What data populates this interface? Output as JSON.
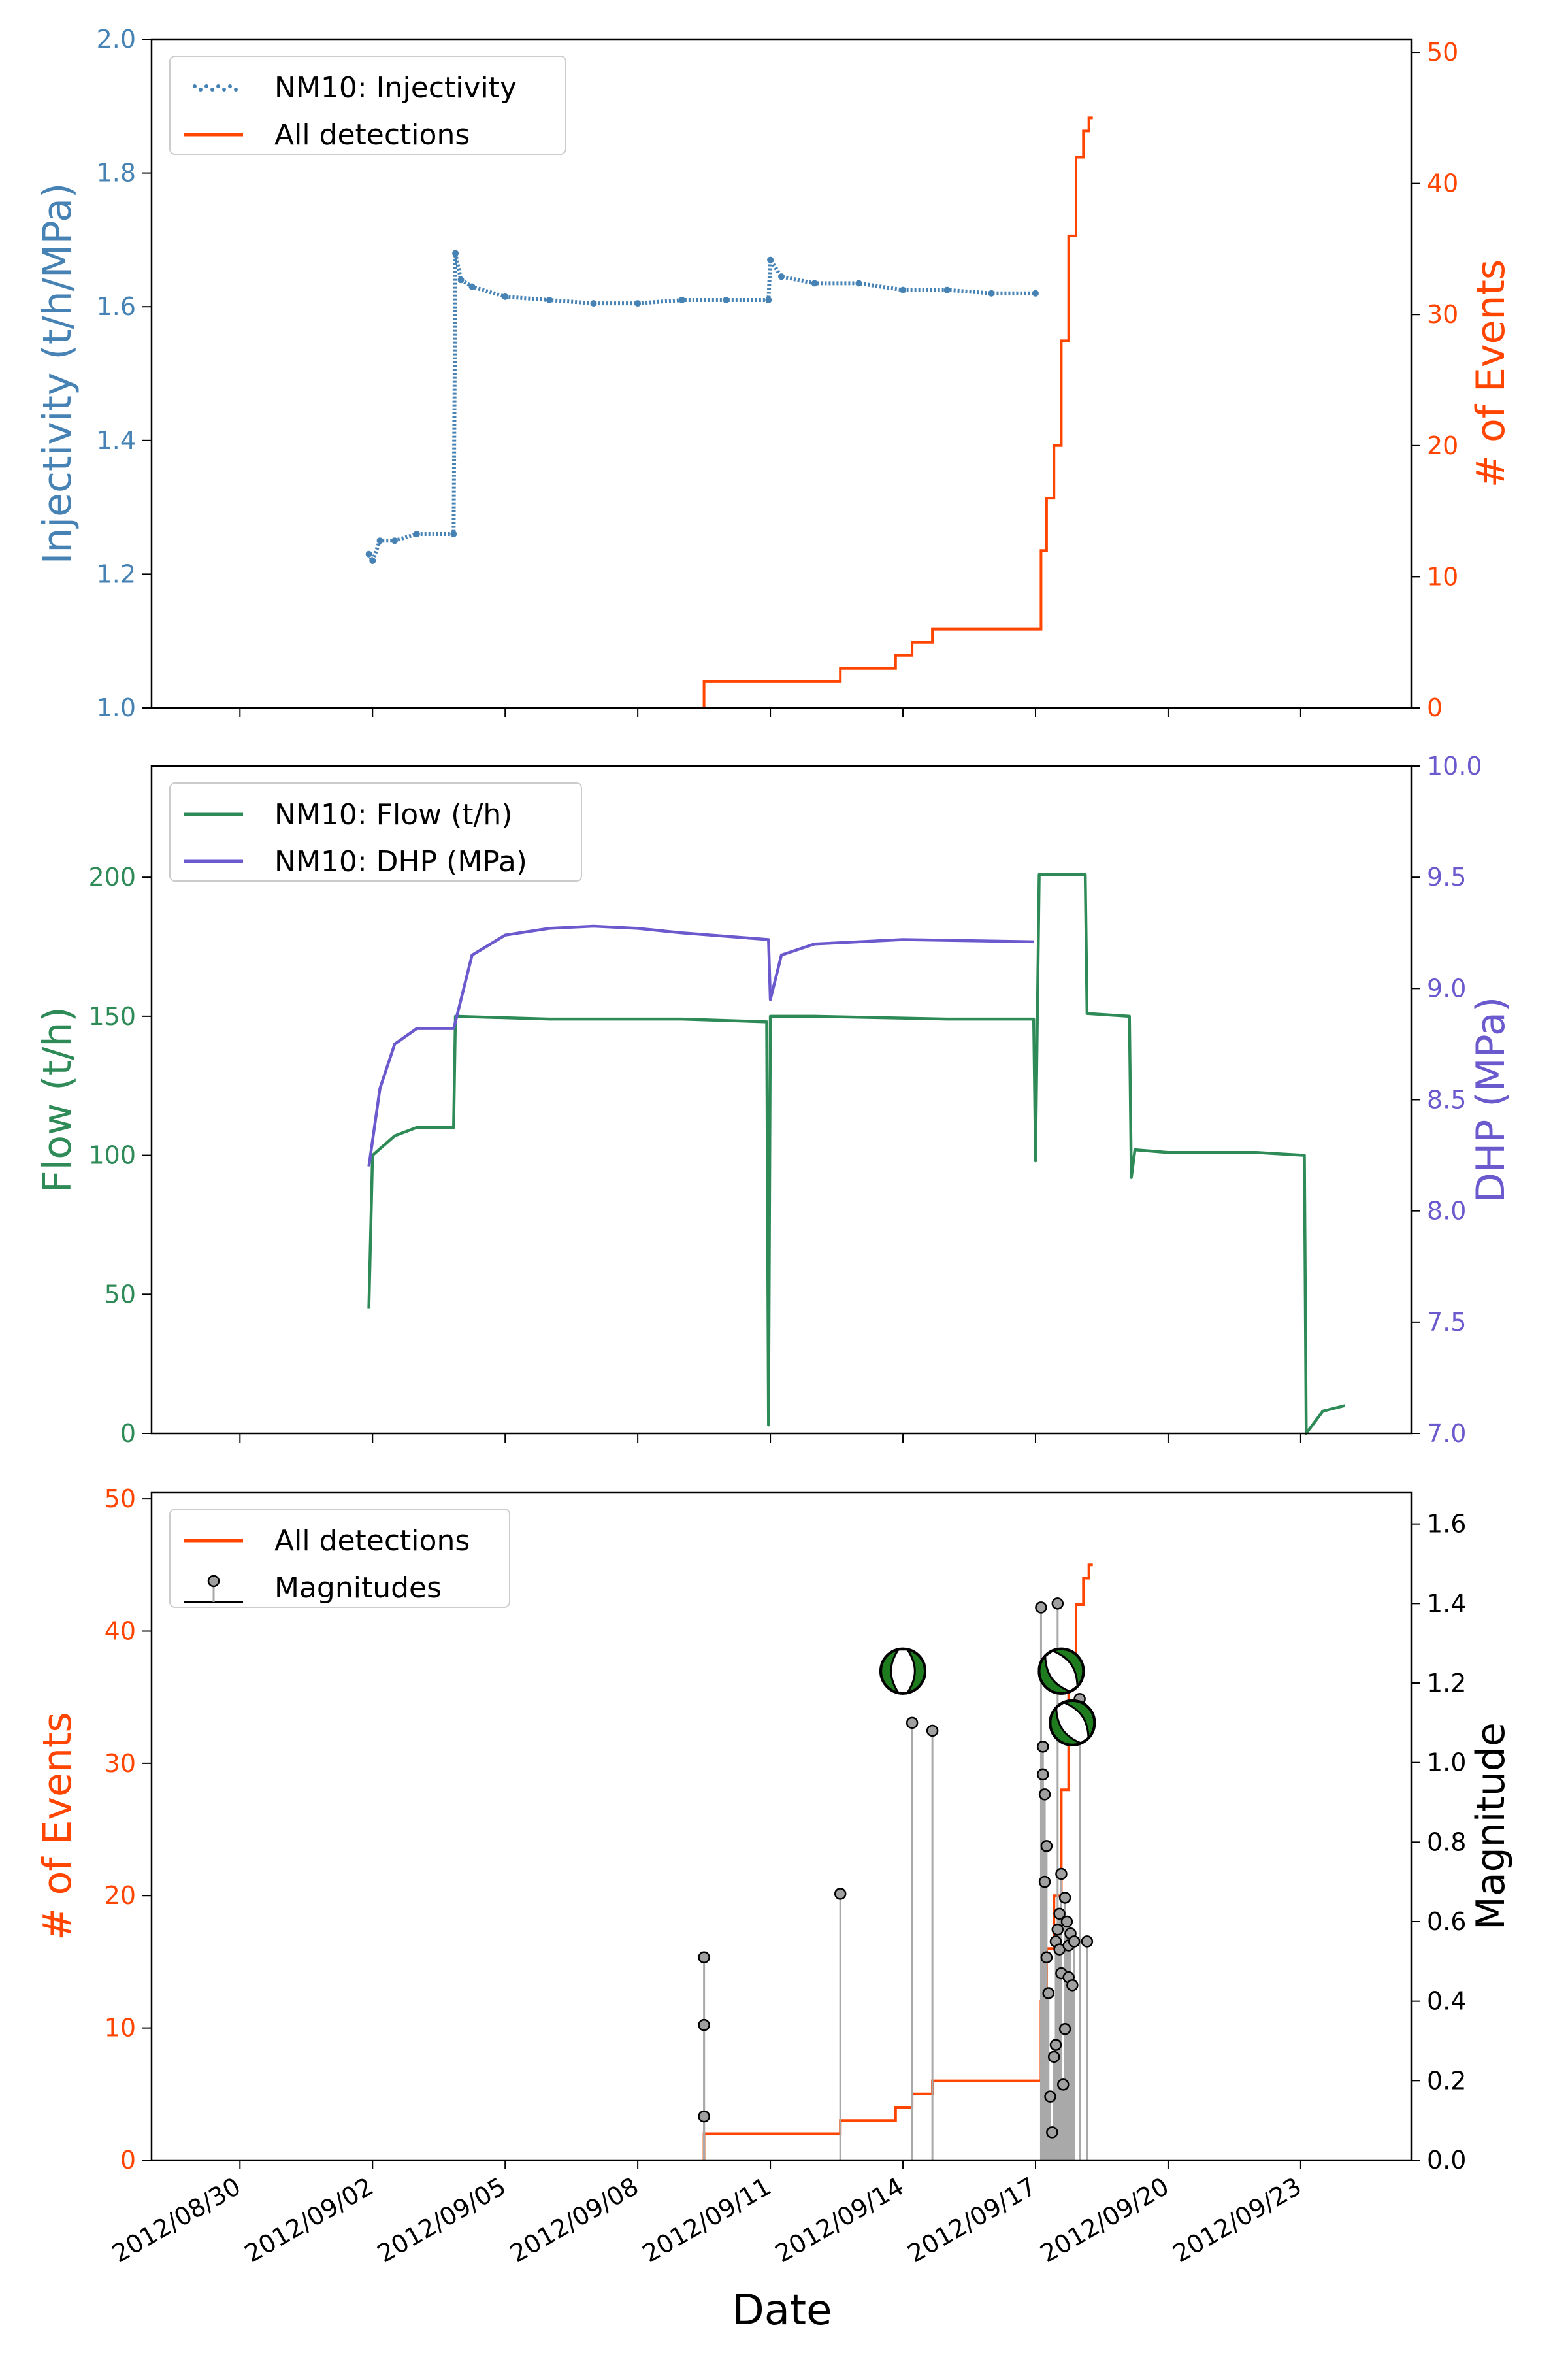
{
  "figure": {
    "x_label": "Date",
    "x_ticks": [
      "2012/08/30",
      "2012/09/02",
      "2012/09/05",
      "2012/09/08",
      "2012/09/11",
      "2012/09/14",
      "2012/09/17",
      "2012/09/20",
      "2012/09/23"
    ],
    "x_tick_values": [
      "2012-08-30",
      "2012-09-02",
      "2012-09-05",
      "2012-09-08",
      "2012-09-11",
      "2012-09-14",
      "2012-09-17",
      "2012-09-20",
      "2012-09-23"
    ],
    "x_range": [
      "2012-08-28T00:00",
      "2012-09-25T12:00"
    ]
  },
  "chart_data": [
    {
      "type": "line",
      "panel": "top",
      "ylabel_left": "Injectivity (t/h/MPa)",
      "ylabel_right": "# of Events",
      "ylim_left": [
        1.0,
        2.0
      ],
      "ylim_right": [
        0,
        51
      ],
      "yticks_left": [
        "1.0",
        "1.2",
        "1.4",
        "1.6",
        "1.8",
        "2.0"
      ],
      "yticks_right": [
        "0",
        "10",
        "20",
        "30",
        "40",
        "50"
      ],
      "colors": {
        "injectivity": "#4682b4",
        "detections": "#ff4500"
      },
      "legend": {
        "position": "upper-left",
        "entries": [
          "NM10: Injectivity",
          "All detections"
        ]
      },
      "series": [
        {
          "name": "NM10: Injectivity",
          "axis": "left",
          "style": "dots",
          "x": [
            "2012-09-01T22:00",
            "2012-09-02T00:00",
            "2012-09-02T04:00",
            "2012-09-02T12:00",
            "2012-09-03T00:00",
            "2012-09-03T20:00",
            "2012-09-03T21:00",
            "2012-09-04T00:00",
            "2012-09-04T06:00",
            "2012-09-05T00:00",
            "2012-09-06T00:00",
            "2012-09-07T00:00",
            "2012-09-08T00:00",
            "2012-09-09T00:00",
            "2012-09-10T00:00",
            "2012-09-10T23:00",
            "2012-09-11T00:00",
            "2012-09-11T06:00",
            "2012-09-12T00:00",
            "2012-09-13T00:00",
            "2012-09-14T00:00",
            "2012-09-15T00:00",
            "2012-09-16T00:00",
            "2012-09-17T00:00"
          ],
          "y": [
            1.23,
            1.22,
            1.25,
            1.25,
            1.26,
            1.26,
            1.68,
            1.64,
            1.63,
            1.615,
            1.61,
            1.605,
            1.605,
            1.61,
            1.61,
            1.61,
            1.67,
            1.645,
            1.635,
            1.635,
            1.625,
            1.625,
            1.62,
            1.62
          ]
        },
        {
          "name": "All detections",
          "axis": "right",
          "style": "step",
          "x": [
            "2012-09-09T12:00",
            "2012-09-12T14:00",
            "2012-09-13T20:00",
            "2012-09-14T05:00",
            "2012-09-14T16:00",
            "2012-09-17T03:00",
            "2012-09-17T06:00",
            "2012-09-17T10:00",
            "2012-09-17T14:00",
            "2012-09-17T18:00",
            "2012-09-17T22:00",
            "2012-09-18T02:00",
            "2012-09-18T05:00"
          ],
          "y": [
            2,
            3,
            4,
            5,
            6,
            12,
            16,
            20,
            28,
            36,
            42,
            44,
            45
          ]
        }
      ]
    },
    {
      "type": "line",
      "panel": "middle",
      "ylabel_left": "Flow (t/h)",
      "ylabel_right": "DHP (MPa)",
      "ylim_left": [
        0,
        240
      ],
      "ylim_right": [
        7.0,
        10.0
      ],
      "yticks_left": [
        "0",
        "50",
        "100",
        "150",
        "200"
      ],
      "yticks_right": [
        "7.0",
        "7.5",
        "8.0",
        "8.5",
        "9.0",
        "9.5",
        "10.0"
      ],
      "colors": {
        "flow": "#2e8b57",
        "dhp": "#6a5acd"
      },
      "legend": {
        "position": "upper-left",
        "entries": [
          "NM10: Flow (t/h)",
          "NM10: DHP (MPa)"
        ]
      },
      "series": [
        {
          "name": "NM10: Flow (t/h)",
          "axis": "left",
          "x": [
            "2012-09-01T22:00",
            "2012-09-02T00:00",
            "2012-09-02T12:00",
            "2012-09-03T00:00",
            "2012-09-03T20:00",
            "2012-09-03T21:00",
            "2012-09-06T00:00",
            "2012-09-09T00:00",
            "2012-09-10T22:00",
            "2012-09-10T23:00",
            "2012-09-11T00:00",
            "2012-09-12T00:00",
            "2012-09-15T00:00",
            "2012-09-16T23:00",
            "2012-09-17T00:00",
            "2012-09-17T01:00",
            "2012-09-17T02:00",
            "2012-09-18T03:00",
            "2012-09-18T04:00",
            "2012-09-19T03:00",
            "2012-09-19T04:00",
            "2012-09-19T06:00",
            "2012-09-20T00:00",
            "2012-09-22T00:00",
            "2012-09-23T02:00",
            "2012-09-23T03:00",
            "2012-09-23T12:00",
            "2012-09-24T00:00"
          ],
          "y": [
            45,
            100,
            107,
            110,
            110,
            150,
            149,
            149,
            148,
            3,
            150,
            150,
            149,
            149,
            98,
            150,
            201,
            201,
            151,
            150,
            92,
            102,
            101,
            101,
            100,
            0,
            8,
            10
          ]
        },
        {
          "name": "NM10: DHP (MPa)",
          "axis": "right",
          "x": [
            "2012-09-01T22:00",
            "2012-09-02T04:00",
            "2012-09-02T12:00",
            "2012-09-03T00:00",
            "2012-09-03T20:00",
            "2012-09-03T21:00",
            "2012-09-04T06:00",
            "2012-09-05T00:00",
            "2012-09-06T00:00",
            "2012-09-07T00:00",
            "2012-09-08T00:00",
            "2012-09-09T00:00",
            "2012-09-10T23:00",
            "2012-09-11T00:00",
            "2012-09-11T06:00",
            "2012-09-12T00:00",
            "2012-09-14T00:00",
            "2012-09-16T23:00"
          ],
          "y": [
            8.2,
            8.55,
            8.75,
            8.82,
            8.82,
            8.85,
            9.15,
            9.24,
            9.27,
            9.28,
            9.27,
            9.25,
            9.22,
            8.95,
            9.15,
            9.2,
            9.22,
            9.21
          ]
        }
      ]
    },
    {
      "type": "scatter",
      "panel": "bottom",
      "ylabel_left": "# of Events",
      "ylabel_right": "Magnitude",
      "ylim_left": [
        0,
        50.5
      ],
      "ylim_right": [
        0.0,
        1.68
      ],
      "yticks_left": [
        "0",
        "10",
        "20",
        "30",
        "40",
        "50"
      ],
      "yticks_right": [
        "0.0",
        "0.2",
        "0.4",
        "0.6",
        "0.8",
        "1.0",
        "1.2",
        "1.4",
        "1.6"
      ],
      "colors": {
        "detections": "#ff4500",
        "magnitudes": "#a9a9a9",
        "beachball": "#1e7b1e"
      },
      "legend": {
        "position": "upper-left",
        "entries": [
          "All detections",
          "Magnitudes"
        ]
      },
      "series": [
        {
          "name": "All detections",
          "axis": "left",
          "style": "step",
          "x": [
            "2012-09-09T12:00",
            "2012-09-12T14:00",
            "2012-09-13T20:00",
            "2012-09-14T05:00",
            "2012-09-14T16:00",
            "2012-09-17T03:00",
            "2012-09-17T06:00",
            "2012-09-17T10:00",
            "2012-09-17T14:00",
            "2012-09-17T18:00",
            "2012-09-17T22:00",
            "2012-09-18T02:00",
            "2012-09-18T05:00"
          ],
          "y": [
            2,
            3,
            4,
            5,
            6,
            12,
            16,
            20,
            28,
            36,
            42,
            44,
            45
          ]
        },
        {
          "name": "Magnitudes",
          "axis": "right",
          "style": "stem",
          "x": [
            "2012-09-09T12:00",
            "2012-09-09T12:00",
            "2012-09-09T12:00",
            "2012-09-12T14:00",
            "2012-09-14T05:00",
            "2012-09-14T16:00",
            "2012-09-17T03:00",
            "2012-09-17T04:00",
            "2012-09-17T04:00",
            "2012-09-17T05:00",
            "2012-09-17T05:00",
            "2012-09-17T06:00",
            "2012-09-17T06:00",
            "2012-09-17T07:00",
            "2012-09-17T08:00",
            "2012-09-17T09:00",
            "2012-09-17T10:00",
            "2012-09-17T11:00",
            "2012-09-17T11:00",
            "2012-09-17T12:00",
            "2012-09-17T12:00",
            "2012-09-17T13:00",
            "2012-09-17T13:00",
            "2012-09-17T14:00",
            "2012-09-17T14:00",
            "2012-09-17T15:00",
            "2012-09-17T16:00",
            "2012-09-17T16:00",
            "2012-09-17T17:00",
            "2012-09-17T18:00",
            "2012-09-17T18:00",
            "2012-09-17T19:00",
            "2012-09-17T20:00",
            "2012-09-17T21:00",
            "2012-09-18T00:00",
            "2012-09-18T04:00"
          ],
          "y": [
            0.11,
            0.34,
            0.51,
            0.67,
            1.1,
            1.08,
            1.39,
            1.04,
            0.97,
            0.92,
            0.7,
            0.79,
            0.51,
            0.42,
            0.16,
            0.07,
            0.26,
            0.29,
            0.55,
            1.4,
            0.58,
            0.62,
            0.53,
            0.72,
            0.47,
            0.19,
            0.33,
            0.66,
            0.6,
            0.54,
            0.46,
            0.57,
            0.44,
            0.55,
            1.16,
            0.55
          ]
        },
        {
          "name": "Focal mechanisms",
          "axis": "right",
          "style": "beachball",
          "x": [
            "2012-09-14T00:00",
            "2012-09-17T14:00",
            "2012-09-17T20:00"
          ],
          "y": [
            1.23,
            1.23,
            1.1
          ]
        }
      ]
    }
  ]
}
